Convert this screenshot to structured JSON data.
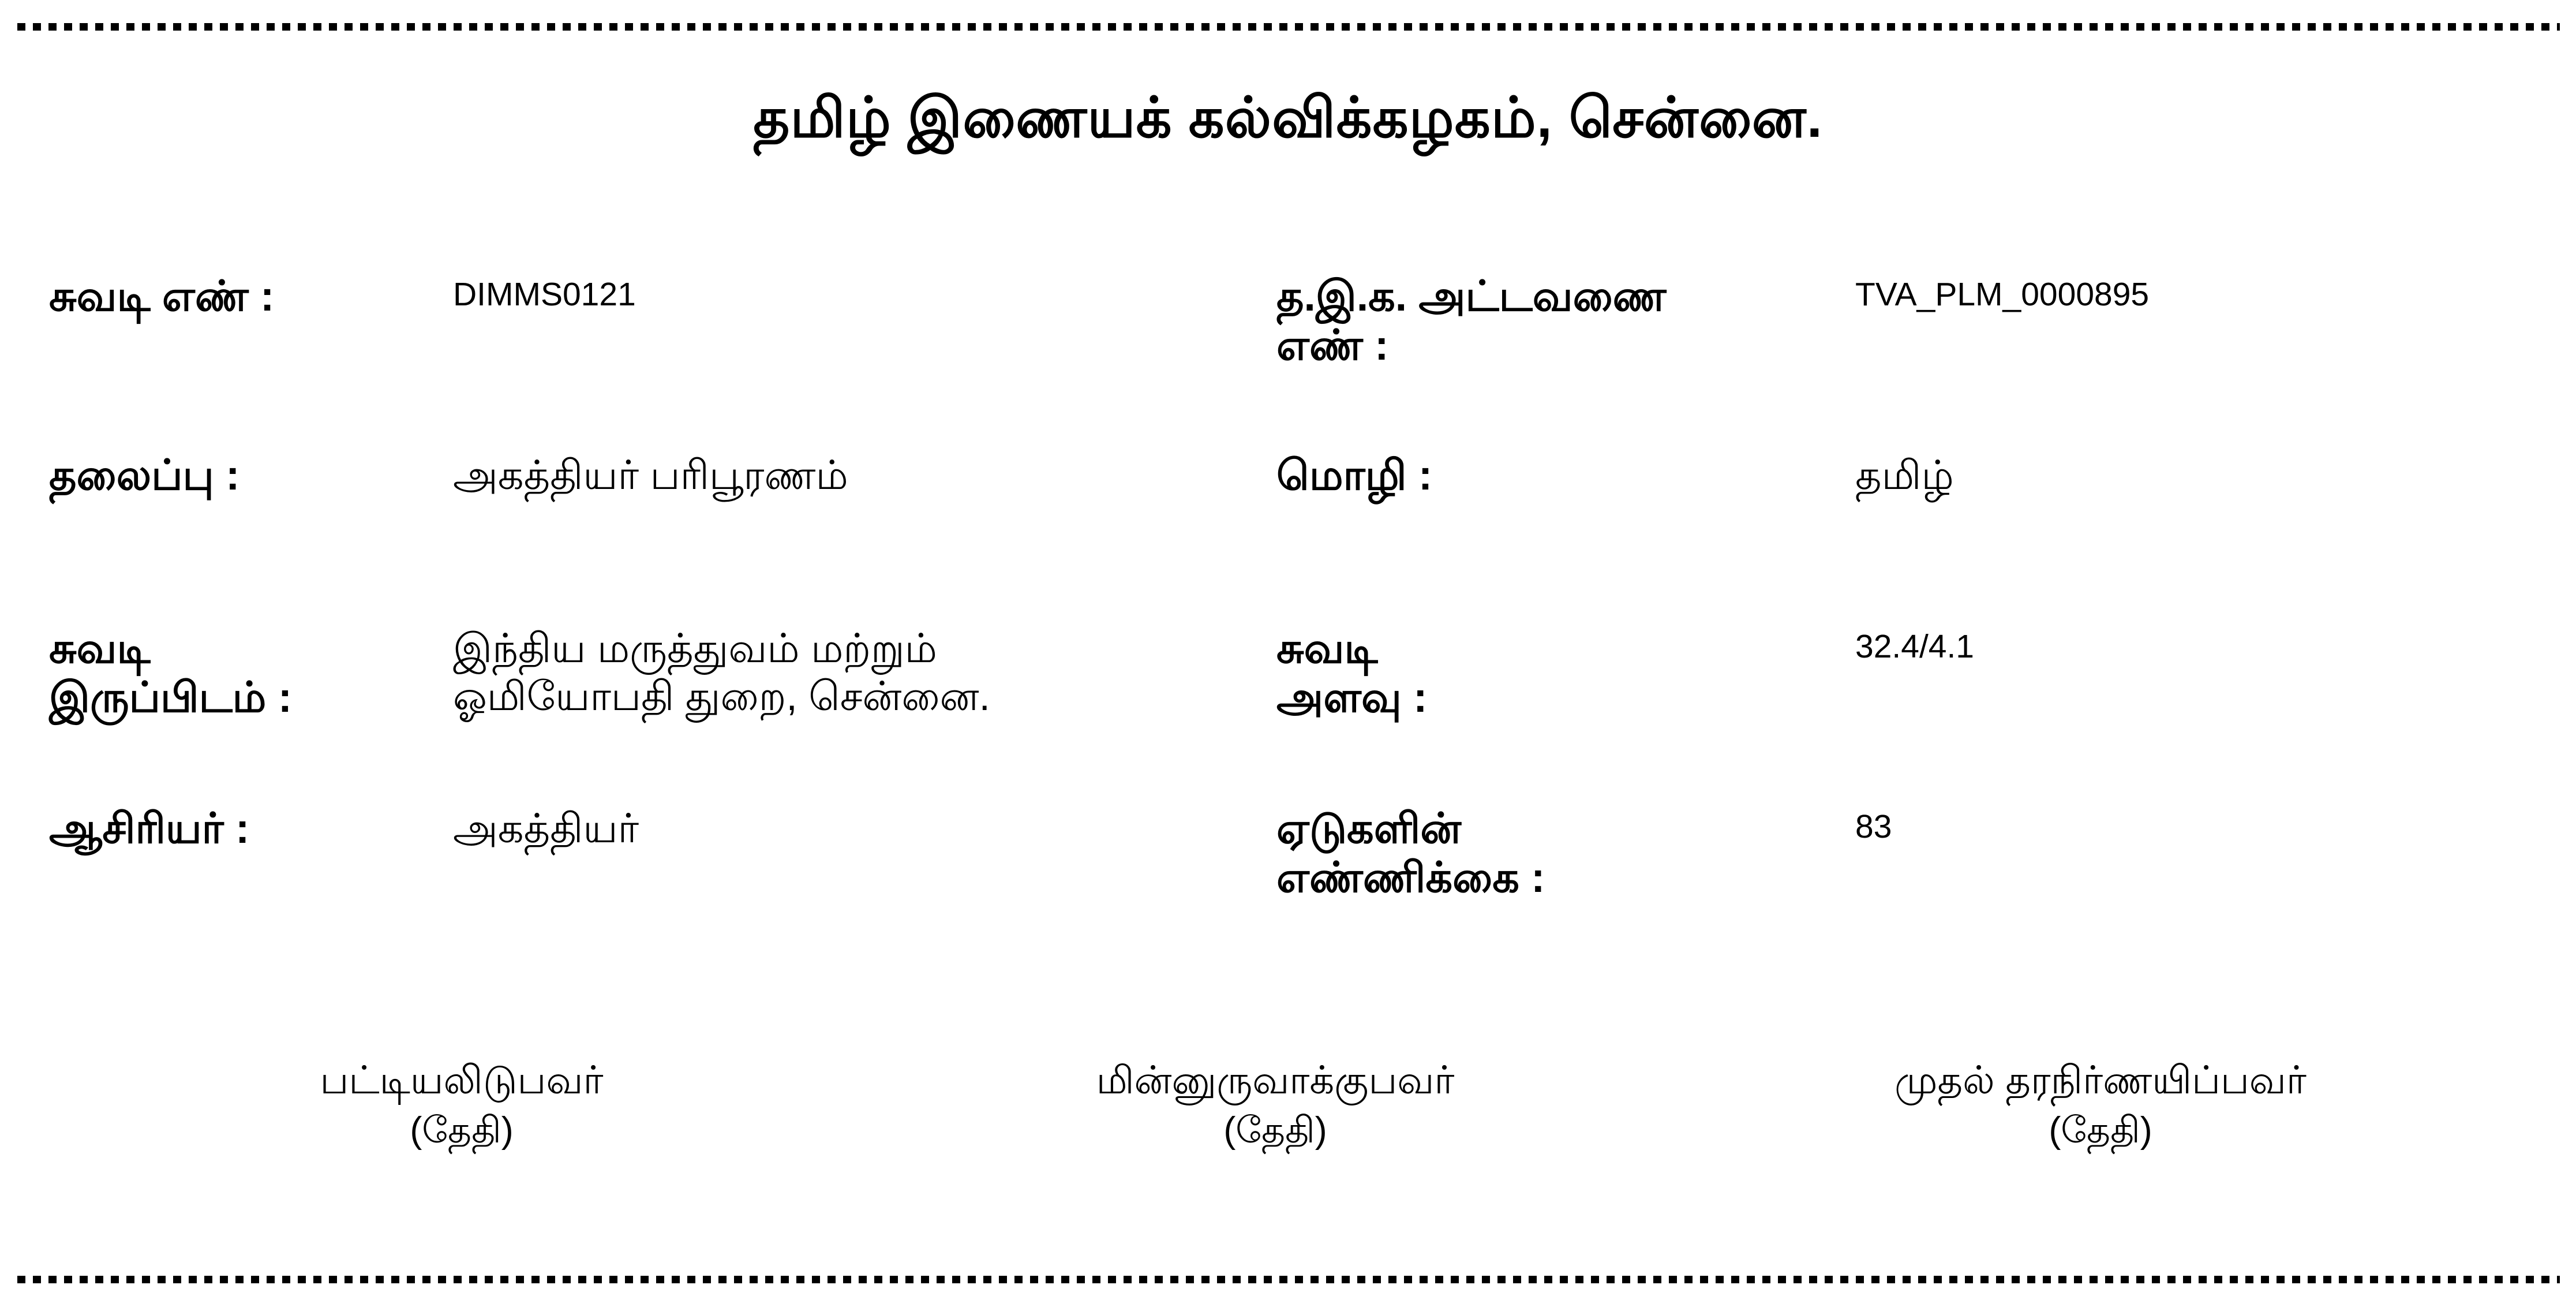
{
  "title": "தமிழ் இணையக் கல்விக்கழகம், சென்னை.",
  "fields": {
    "left": [
      {
        "label": "சுவடி எண் :",
        "value": "DIMMS0121"
      },
      {
        "label": "தலைப்பு :",
        "value": "அகத்தியர் பரிபூரணம்"
      },
      {
        "label": "சுவடி\nஇருப்பிடம் :",
        "value": "இந்திய மருத்துவம் மற்றும்\nஓமியோபதி துறை, சென்னை."
      },
      {
        "label": "ஆசிரியர் :",
        "value": "அகத்தியர்"
      }
    ],
    "right": [
      {
        "label": "த.இ.க. அட்டவணை\nஎண் :",
        "value": "TVA_PLM_0000895"
      },
      {
        "label": "மொழி :",
        "value": "தமிழ்"
      },
      {
        "label": "சுவடி\nஅளவு :",
        "value": "32.4/4.1"
      },
      {
        "label": "ஏடுகளின்\nஎண்ணிக்கை :",
        "value": "83"
      }
    ]
  },
  "signatures": [
    {
      "role": "பட்டியலிடுபவர்",
      "date_label": "(தேதி)"
    },
    {
      "role": "மின்னுருவாக்குபவர்",
      "date_label": "(தேதி)"
    },
    {
      "role": "முதல் தரநிர்ணயிப்பவர்",
      "date_label": "(தேதி)"
    }
  ]
}
